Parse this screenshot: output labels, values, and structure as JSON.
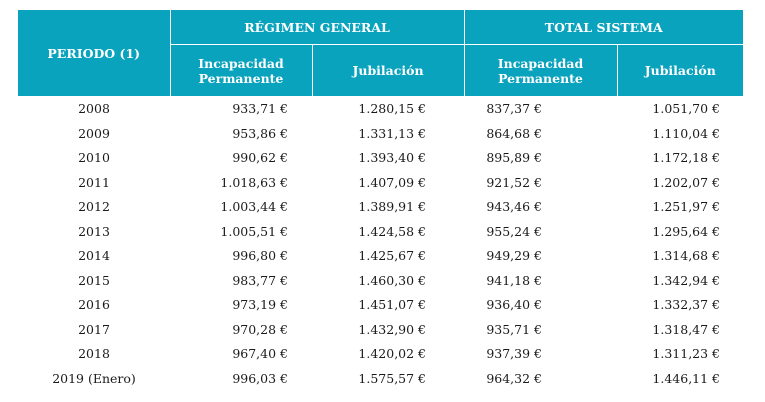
{
  "table": {
    "header": {
      "period": "PERIODO (1)",
      "groups": [
        {
          "label": "RÉGIMEN GENERAL",
          "sub": [
            "Incapacidad Permanente",
            "Jubilación"
          ]
        },
        {
          "label": "TOTAL SISTEMA",
          "sub": [
            "Incapacidad Permanente",
            "Jubilación"
          ]
        }
      ],
      "sub_line1": "Incapacidad",
      "sub_line2": "Permanente",
      "jubilacion": "Jubilación"
    },
    "header_color": "#0aa3bd",
    "rows": [
      {
        "period": "2008",
        "rg_ip": "933,71 €",
        "rg_jub": "1.280,15 €",
        "ts_ip": "837,37 €",
        "ts_jub": "1.051,70 €"
      },
      {
        "period": "2009",
        "rg_ip": "953,86 €",
        "rg_jub": "1.331,13 €",
        "ts_ip": "864,68 €",
        "ts_jub": "1.110,04 €"
      },
      {
        "period": "2010",
        "rg_ip": "990,62 €",
        "rg_jub": "1.393,40 €",
        "ts_ip": "895,89 €",
        "ts_jub": "1.172,18 €"
      },
      {
        "period": "2011",
        "rg_ip": "1.018,63 €",
        "rg_jub": "1.407,09 €",
        "ts_ip": "921,52 €",
        "ts_jub": "1.202,07 €"
      },
      {
        "period": "2012",
        "rg_ip": "1.003,44 €",
        "rg_jub": "1.389,91 €",
        "ts_ip": "943,46 €",
        "ts_jub": "1.251,97 €"
      },
      {
        "period": "2013",
        "rg_ip": "1.005,51 €",
        "rg_jub": "1.424,58 €",
        "ts_ip": "955,24 €",
        "ts_jub": "1.295,64 €"
      },
      {
        "period": "2014",
        "rg_ip": "996,80 €",
        "rg_jub": "1.425,67 €",
        "ts_ip": "949,29 €",
        "ts_jub": "1.314,68 €"
      },
      {
        "period": "2015",
        "rg_ip": "983,77 €",
        "rg_jub": "1.460,30 €",
        "ts_ip": "941,18 €",
        "ts_jub": "1.342,94 €"
      },
      {
        "period": "2016",
        "rg_ip": "973,19 €",
        "rg_jub": "1.451,07 €",
        "ts_ip": "936,40 €",
        "ts_jub": "1.332,37 €"
      },
      {
        "period": "2017",
        "rg_ip": "970,28 €",
        "rg_jub": "1.432,90 €",
        "ts_ip": "935,71 €",
        "ts_jub": "1.318,47 €"
      },
      {
        "period": "2018",
        "rg_ip": "967,40 €",
        "rg_jub": "1.420,02 €",
        "ts_ip": "937,39 €",
        "ts_jub": "1.311,23 €"
      },
      {
        "period": "2019 (Enero)",
        "rg_ip": "996,03 €",
        "rg_jub": "1.575,57 €",
        "ts_ip": "964,32 €",
        "ts_jub": "1.446,11 €"
      }
    ]
  }
}
